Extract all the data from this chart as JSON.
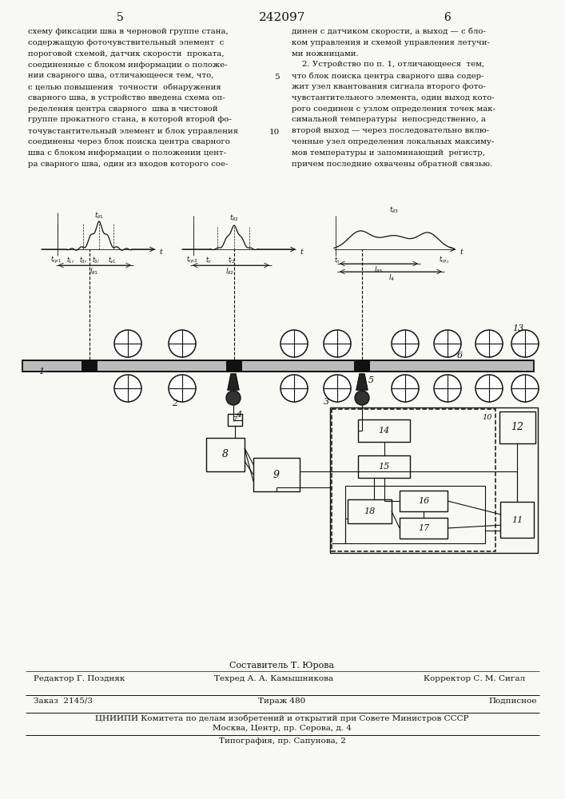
{
  "patent_number": "242097",
  "page_left": "5",
  "page_right": "6",
  "bg_color": "#f8f8f4",
  "text_color": "#111111",
  "composer": "Составитель Т. Юрова",
  "editor": "Редактор Г. Поздняк",
  "tech": "Техред А. А. Камышникова",
  "corrector": "Корректор С. М. Сигал",
  "order": "Заказ  2145/3",
  "circulation": "Тираж 480",
  "subscription": "Подписное",
  "org_line1": "ЦНИИПИ Комитета по делам изобретений и открытий при Совете Министров СССР",
  "org_line2": "Москва, Центр, пр. Серова, д. 4",
  "print_house": "Типография, пр. Сапунова, 2",
  "left_text": [
    "схему фиксации шва в черновой группе стана,",
    "содержащую фоточувствительный элемент  с",
    "пороговой схемой, датчик скорости  проката,",
    "соединенные с блоком информации о положе-",
    "нии сварного шва, отличающееся тем, что,",
    "с целью повышения  точности  обнаружения",
    "сварного шва, в устройство введена схема оп-",
    "ределения центра сварного  шва в чистовой",
    "группе прокатного стана, в которой второй фо-",
    "точувстантительный элемент и блок управления",
    "соединены через блок поиска центра сварного",
    "шва с блоком информации о положении цент-",
    "ра сварного шва, один из входов которого сое-"
  ],
  "right_text": [
    "динен с датчиком скорости, а выход — с бло-",
    "ком управления и схемой управления летучи-",
    "ми ножницами.",
    "    2. Устройство по п. 1, отличающееся  тем,",
    "что блок поиска центра сварного шва содер-",
    "жит узел квантования сигнала второго фото-",
    "чувстантительного элемента, один выход кото-",
    "рого соединен с узлом определения точек мак-",
    "симальной температуры  непосредственно, а",
    "второй выход — через последовательно вклю-",
    "ченные узел определения локальных максиму-",
    "мов температуры и запоминающий  регистр,",
    "причем последние охвачены обратной связью."
  ]
}
